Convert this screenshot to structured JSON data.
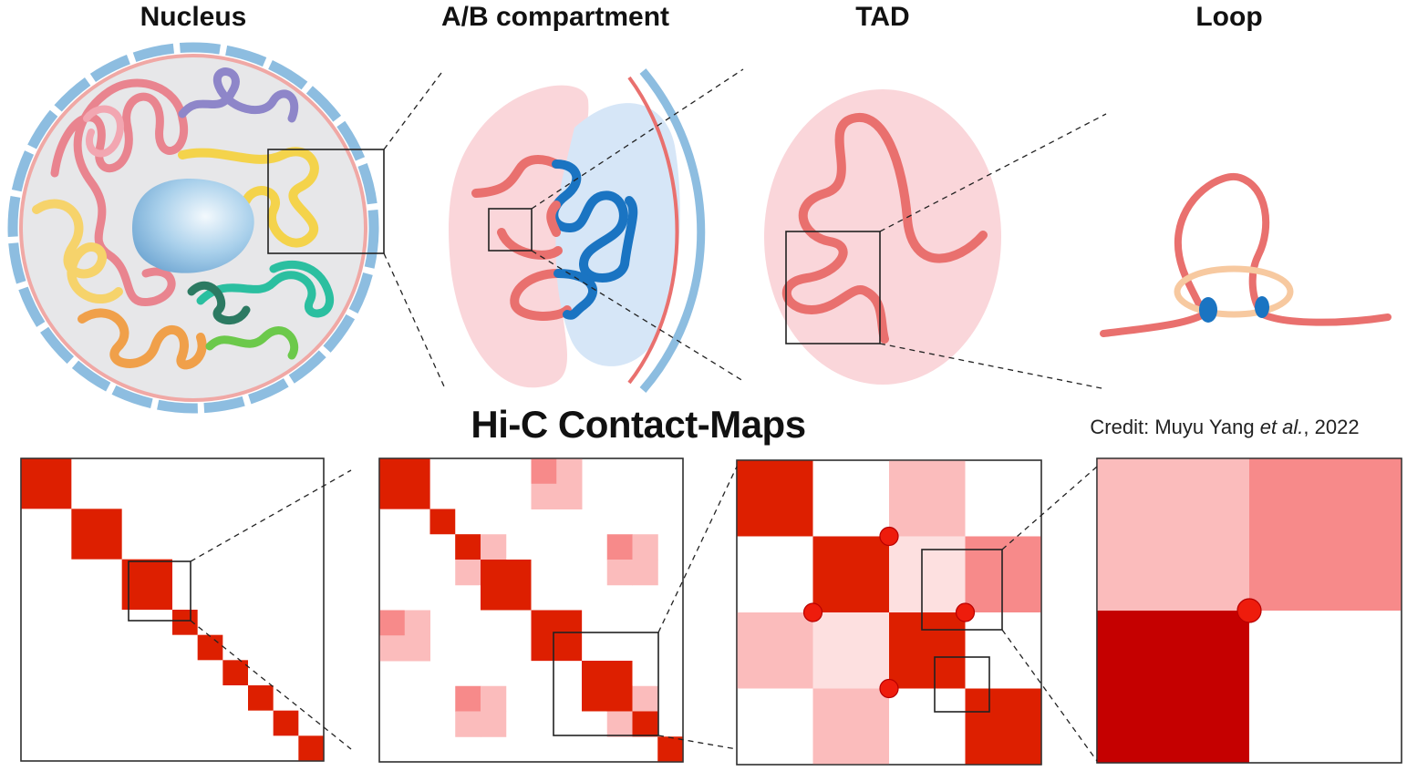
{
  "titles": {
    "nucleus": "Nucleus",
    "ab_compartment": "A/B compartment",
    "tad": "TAD",
    "loop": "Loop"
  },
  "heading": "Hi-C Contact-Maps",
  "credit": {
    "prefix": "Credit: Muyu Yang ",
    "italic": "et al.",
    "suffix": ", 2022"
  },
  "colors": {
    "strong_red": "#dd1f00",
    "dark_red": "#c50000",
    "medium_red": "#f78a8a",
    "light_red": "#fbbcbc",
    "pale_red": "#fde0e0",
    "chromatin_red": "#e9706e",
    "b_blue": "#1a74c2",
    "membrane_blue": "#8dbde0",
    "nucleolus_blue": "#8fc3e6",
    "pink_bg": "#fad6da",
    "blue_bg": "#d6e6f7"
  },
  "maps": [
    {
      "id": "nucleus-map",
      "size": 12,
      "cells": [
        {
          "r": 0,
          "c": 0,
          "w": 2,
          "h": 2,
          "v": 3
        },
        {
          "r": 2,
          "c": 2,
          "w": 2,
          "h": 2,
          "v": 3
        },
        {
          "r": 4,
          "c": 4,
          "w": 2,
          "h": 2,
          "v": 3
        },
        {
          "r": 6,
          "c": 6,
          "w": 1,
          "h": 1,
          "v": 3
        },
        {
          "r": 7,
          "c": 7,
          "w": 1,
          "h": 1,
          "v": 3
        },
        {
          "r": 8,
          "c": 8,
          "w": 1,
          "h": 1,
          "v": 3
        },
        {
          "r": 9,
          "c": 9,
          "w": 1,
          "h": 1,
          "v": 3
        },
        {
          "r": 10,
          "c": 10,
          "w": 1,
          "h": 1,
          "v": 3
        },
        {
          "r": 11,
          "c": 11,
          "w": 1,
          "h": 1,
          "v": 3
        }
      ],
      "dots": []
    },
    {
      "id": "compartment-map",
      "pattern": [
        1,
        1,
        0,
        2,
        2,
        0,
        1,
        1,
        0,
        2,
        2,
        0
      ],
      "blocks": [
        2,
        1,
        1,
        2,
        2,
        2,
        1,
        1
      ],
      "dots": []
    },
    {
      "id": "tad-map",
      "size": 4,
      "cells": [
        {
          "r": 0,
          "c": 0,
          "w": 1,
          "h": 1,
          "v": 3
        },
        {
          "r": 0,
          "c": 2,
          "w": 1,
          "h": 1,
          "v": 1
        },
        {
          "r": 1,
          "c": 1,
          "w": 1,
          "h": 1,
          "v": 3
        },
        {
          "r": 1,
          "c": 2,
          "w": 1,
          "h": 1,
          "v": 0.5
        },
        {
          "r": 1,
          "c": 3,
          "w": 1,
          "h": 1,
          "v": 2
        },
        {
          "r": 2,
          "c": 0,
          "w": 1,
          "h": 1,
          "v": 1
        },
        {
          "r": 2,
          "c": 1,
          "w": 1,
          "h": 1,
          "v": 0.5
        },
        {
          "r": 2,
          "c": 2,
          "w": 1,
          "h": 1,
          "v": 3
        },
        {
          "r": 3,
          "c": 1,
          "w": 1,
          "h": 1,
          "v": 1.5
        },
        {
          "r": 3,
          "c": 3,
          "w": 1,
          "h": 1,
          "v": 3
        }
      ],
      "dots": [
        [
          1,
          2
        ],
        [
          2,
          1
        ],
        [
          2,
          3
        ],
        [
          3,
          2
        ]
      ]
    },
    {
      "id": "loop-map",
      "size": 2,
      "cells": [
        {
          "r": 0,
          "c": 0,
          "w": 1,
          "h": 1,
          "v": 1
        },
        {
          "r": 0,
          "c": 1,
          "w": 1,
          "h": 1,
          "v": 2
        },
        {
          "r": 1,
          "c": 0,
          "w": 1,
          "h": 1,
          "v": 4
        }
      ],
      "dots": [
        [
          1,
          1
        ]
      ]
    }
  ]
}
